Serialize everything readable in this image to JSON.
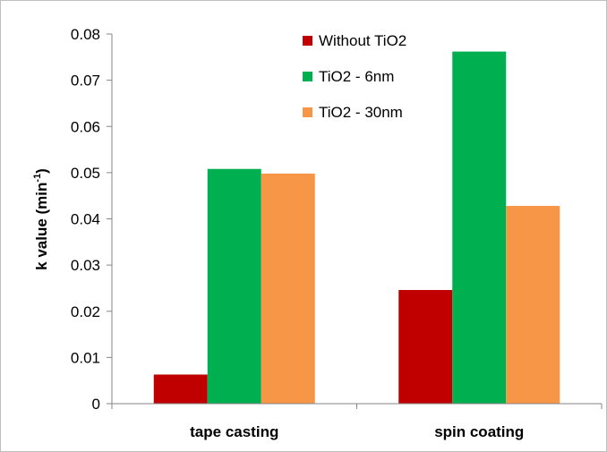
{
  "chart_data": {
    "type": "bar",
    "categories": [
      "tape casting",
      "spin coating"
    ],
    "series": [
      {
        "name": "Without TiO2",
        "color": "#c00000",
        "values": [
          0.0063,
          0.0246
        ]
      },
      {
        "name": "TiO2 - 6nm",
        "color": "#00b050",
        "values": [
          0.0508,
          0.0762
        ]
      },
      {
        "name": "TiO2 - 30nm",
        "color": "#f79646",
        "values": [
          0.0498,
          0.0428
        ]
      }
    ],
    "ylabel_main": "k value (min",
    "ylabel_sup": "-1",
    "ylabel_close": ")",
    "ylim": [
      0,
      0.08
    ],
    "yticks": [
      "0",
      "0.01",
      "0.02",
      "0.03",
      "0.04",
      "0.05",
      "0.06",
      "0.07",
      "0.08"
    ],
    "legend_position": "top-right",
    "grid": false
  }
}
